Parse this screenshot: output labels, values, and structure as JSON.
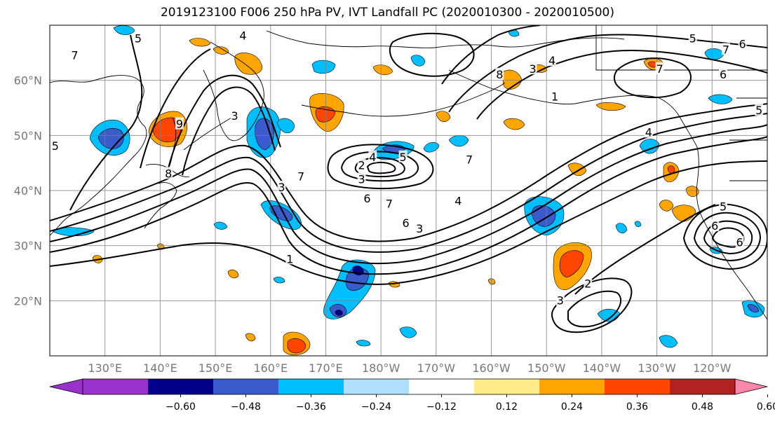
{
  "title": "2019123100 F006 250 hPa PV, IVT Landfall PC (2020010300 - 2020010500)",
  "map": {
    "lon_range": [
      120,
      250
    ],
    "lat_range": [
      10,
      70
    ],
    "lat_ticks": [
      {
        "lat": 60,
        "label": "60°N"
      },
      {
        "lat": 50,
        "label": "50°N"
      },
      {
        "lat": 40,
        "label": "40°N"
      },
      {
        "lat": 30,
        "label": "30°N"
      },
      {
        "lat": 20,
        "label": "20°N"
      }
    ],
    "lon_ticks": [
      {
        "lon": 130,
        "label": "130°E"
      },
      {
        "lon": 140,
        "label": "140°E"
      },
      {
        "lon": 150,
        "label": "150°E"
      },
      {
        "lon": 160,
        "label": "160°E"
      },
      {
        "lon": 170,
        "label": "170°E"
      },
      {
        "lon": 180,
        "label": "180°W"
      },
      {
        "lon": 190,
        "label": "170°W"
      },
      {
        "lon": 200,
        "label": "160°W"
      },
      {
        "lon": 210,
        "label": "150°W"
      },
      {
        "lon": 220,
        "label": "140°W"
      },
      {
        "lon": 230,
        "label": "130°W"
      },
      {
        "lon": 240,
        "label": "120°W"
      }
    ],
    "contour_labels": [
      {
        "text": "1",
        "lon": 163.5,
        "lat": 27.5
      },
      {
        "text": "2",
        "lon": 217.5,
        "lat": 23.0
      },
      {
        "text": "3",
        "lon": 212.5,
        "lat": 20.0
      },
      {
        "text": "3",
        "lon": 176.5,
        "lat": 42.0
      },
      {
        "text": "2",
        "lon": 176.5,
        "lat": 44.5
      },
      {
        "text": "4",
        "lon": 178.5,
        "lat": 46.0
      },
      {
        "text": "5",
        "lon": 184.0,
        "lat": 46.0
      },
      {
        "text": "6",
        "lon": 177.5,
        "lat": 38.5
      },
      {
        "text": "7",
        "lon": 181.5,
        "lat": 37.5
      },
      {
        "text": "6",
        "lon": 184.5,
        "lat": 34.0
      },
      {
        "text": "3",
        "lon": 187.0,
        "lat": 33.0
      },
      {
        "text": "4",
        "lon": 194.0,
        "lat": 38.0
      },
      {
        "text": "7",
        "lon": 196.0,
        "lat": 45.5
      },
      {
        "text": "7",
        "lon": 165.5,
        "lat": 42.5
      },
      {
        "text": "3",
        "lon": 162.0,
        "lat": 40.5
      },
      {
        "text": "3",
        "lon": 153.5,
        "lat": 53.5
      },
      {
        "text": "9",
        "lon": 143.5,
        "lat": 52.0
      },
      {
        "text": "8",
        "lon": 141.5,
        "lat": 43.0
      },
      {
        "text": "8",
        "lon": 201.5,
        "lat": 61.0
      },
      {
        "text": "3",
        "lon": 207.5,
        "lat": 62.0
      },
      {
        "text": "4",
        "lon": 211.0,
        "lat": 63.5
      },
      {
        "text": "1",
        "lon": 211.5,
        "lat": 57.0
      },
      {
        "text": "7",
        "lon": 230.5,
        "lat": 62.0
      },
      {
        "text": "5",
        "lon": 236.5,
        "lat": 67.5
      },
      {
        "text": "7",
        "lon": 242.5,
        "lat": 65.5
      },
      {
        "text": "6",
        "lon": 245.5,
        "lat": 66.5
      },
      {
        "text": "6",
        "lon": 242.0,
        "lat": 61.0
      },
      {
        "text": "5",
        "lon": 248.5,
        "lat": 54.5
      },
      {
        "text": "4",
        "lon": 228.5,
        "lat": 50.5
      },
      {
        "text": "5",
        "lon": 242.0,
        "lat": 37.0
      },
      {
        "text": "6",
        "lon": 240.5,
        "lat": 33.5
      },
      {
        "text": "6",
        "lon": 245.0,
        "lat": 30.5
      },
      {
        "text": "5",
        "lon": 136.0,
        "lat": 67.5
      },
      {
        "text": "4",
        "lon": 155.0,
        "lat": 68.0
      },
      {
        "text": "7",
        "lon": 124.5,
        "lat": 64.5
      },
      {
        "text": "5",
        "lon": 121.0,
        "lat": 48.0
      }
    ]
  },
  "colorbar": {
    "colors": [
      "#9932cc",
      "#00008b",
      "#3a5bcc",
      "#00bfff",
      "#b0e0ff",
      "#ffffff",
      "#ffec8b",
      "#ffa500",
      "#ff4500",
      "#b22222",
      "#ff88aa"
    ],
    "tick_labels": [
      "−0.60",
      "−0.48",
      "−0.36",
      "−0.24",
      "−0.12",
      "0.12",
      "0.24",
      "0.36",
      "0.48",
      "0.60"
    ]
  }
}
